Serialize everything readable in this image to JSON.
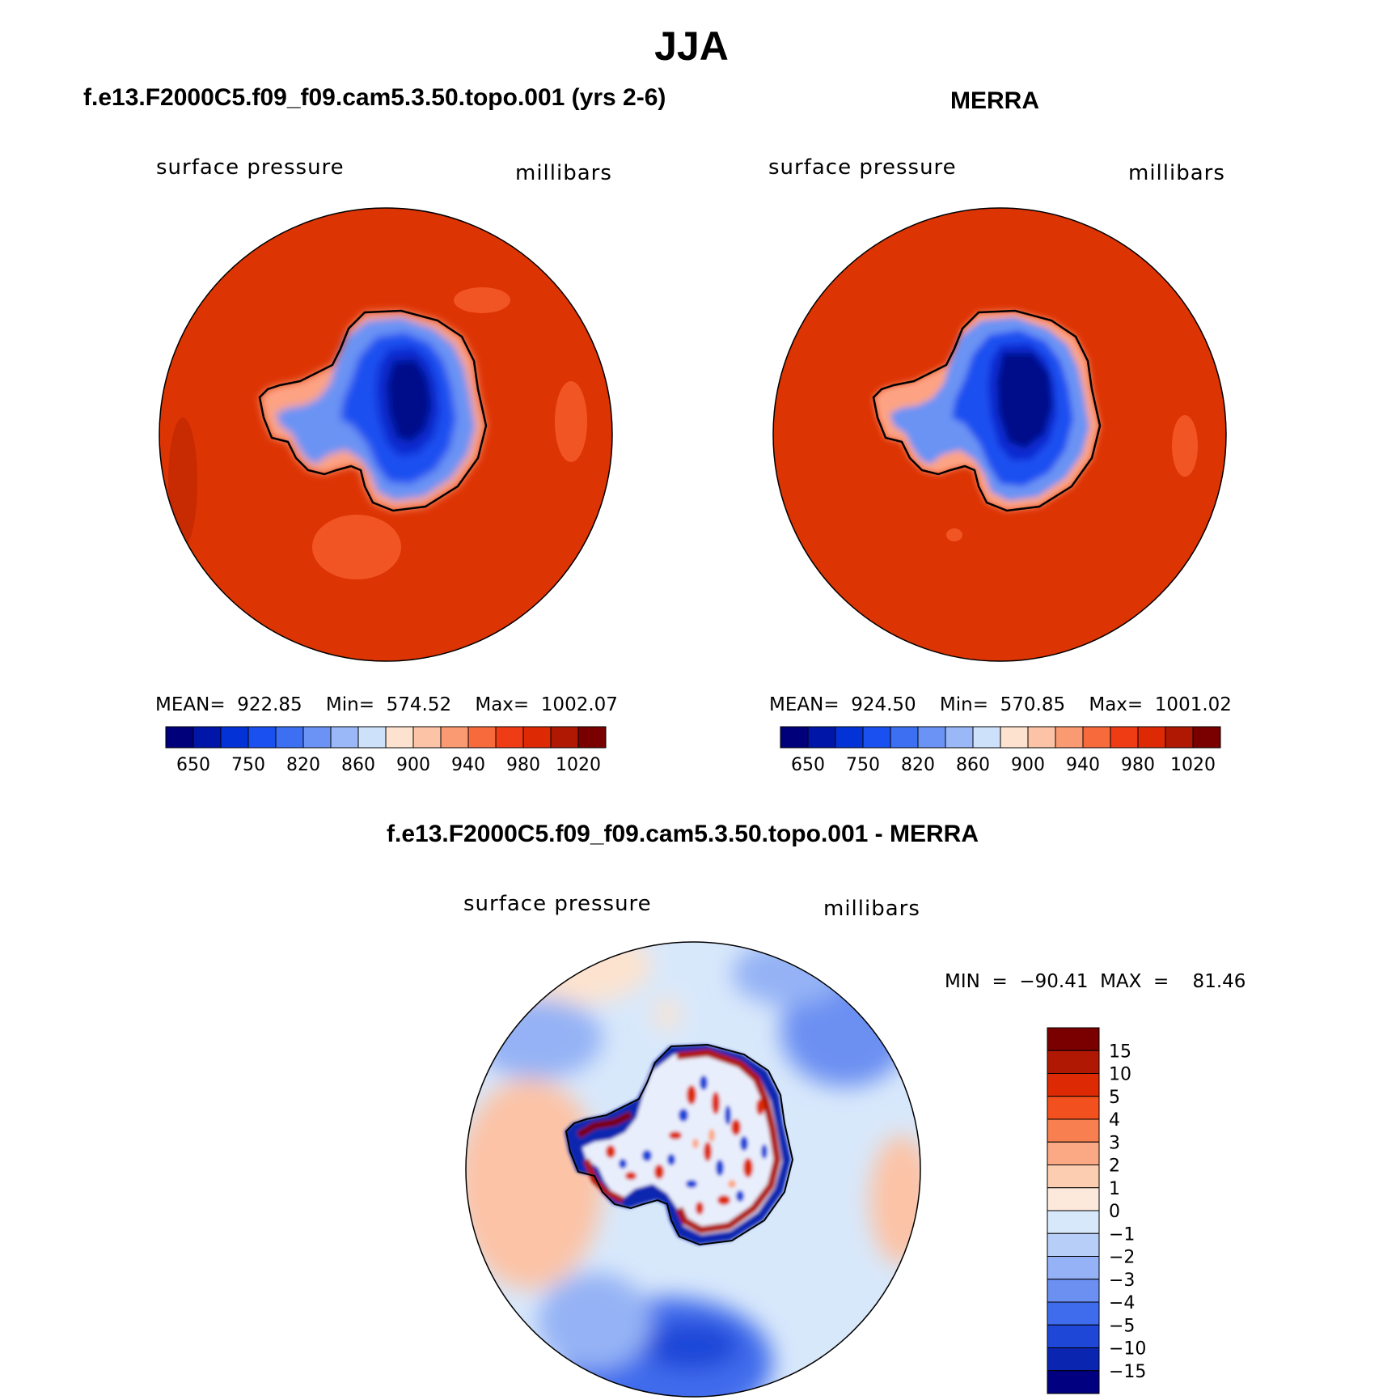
{
  "title": "JJA",
  "panels": [
    {
      "title": "f.e13.F2000C5.f09_f09.cam5.3.50.topo.001 (yrs 2-6)",
      "variable": "surface pressure",
      "units": "millibars",
      "stats_text": "MEAN=  922.85    Min=  574.52    Max=  1002.07"
    },
    {
      "title": "MERRA",
      "variable": "surface pressure",
      "units": "millibars",
      "stats_text": "MEAN=  924.50    Min=  570.85    Max=  1001.02"
    }
  ],
  "colorbar": {
    "colors": [
      "#00007a",
      "#0016a8",
      "#0333d6",
      "#1a4ff0",
      "#3d6ff2",
      "#6a93f5",
      "#9ab8f7",
      "#cde2fa",
      "#fde3cf",
      "#fcc3a6",
      "#fa9a72",
      "#f76a3c",
      "#f03c14",
      "#dd2a04",
      "#b01803",
      "#7a0000"
    ],
    "tick_labels": [
      "650",
      "750",
      "820",
      "860",
      "900",
      "940",
      "980",
      "1020"
    ]
  },
  "diff_panel": {
    "title": "f.e13.F2000C5.f09_f09.cam5.3.50.topo.001 - MERRA",
    "variable": "surface pressure",
    "units": "millibars",
    "minmax_text": "MIN  =  −90.41  MAX  =    81.46",
    "colorbar": {
      "colors": [
        "#7a0000",
        "#b01803",
        "#dd2a04",
        "#f2501e",
        "#f88050",
        "#fba985",
        "#fdcdb2",
        "#fde9dc",
        "#d8e8fb",
        "#b7cff8",
        "#94b2f5",
        "#6c90f2",
        "#3f6cec",
        "#1e47d8",
        "#0a25b0",
        "#000080"
      ],
      "tick_labels": [
        "15",
        "10",
        "5",
        "4",
        "3",
        "2",
        "1",
        "0",
        "−1",
        "−2",
        "−3",
        "−4",
        "−5",
        "−10",
        "−15"
      ]
    }
  }
}
